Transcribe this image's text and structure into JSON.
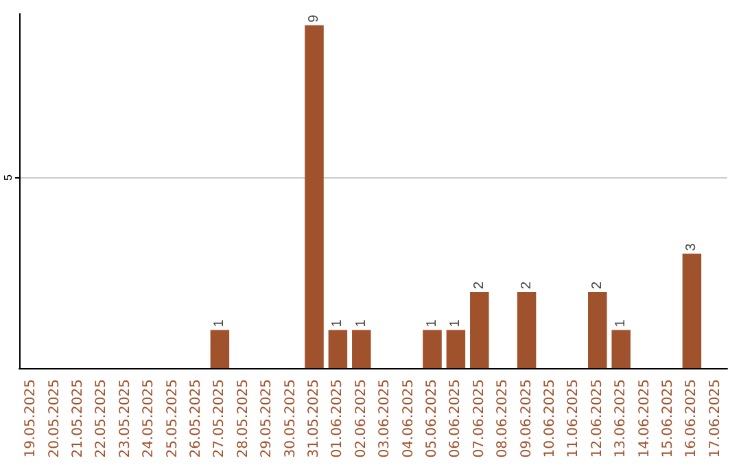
{
  "chart_data": {
    "type": "bar",
    "categories": [
      "19.05.2025",
      "20.05.2025",
      "21.05.2025",
      "22.05.2025",
      "23.05.2025",
      "24.05.2025",
      "25.05.2025",
      "26.05.2025",
      "27.05.2025",
      "28.05.2025",
      "29.05.2025",
      "30.05.2025",
      "31.05.2025",
      "01.06.2025",
      "02.06.2025",
      "03.06.2025",
      "04.06.2025",
      "05.06.2025",
      "06.06.2025",
      "07.06.2025",
      "08.06.2025",
      "09.06.2025",
      "10.06.2025",
      "11.06.2025",
      "12.06.2025",
      "13.06.2025",
      "14.06.2025",
      "15.06.2025",
      "16.06.2025",
      "17.06.2025"
    ],
    "values": [
      0,
      0,
      0,
      0,
      0,
      0,
      0,
      0,
      1,
      0,
      0,
      0,
      9,
      1,
      1,
      0,
      0,
      1,
      1,
      2,
      0,
      2,
      0,
      0,
      2,
      1,
      0,
      0,
      3,
      0
    ],
    "value_labels": [
      null,
      null,
      null,
      null,
      null,
      null,
      null,
      null,
      "1",
      null,
      null,
      null,
      "9",
      "1",
      "1",
      null,
      null,
      "1",
      "1",
      "2",
      null,
      "2",
      null,
      null,
      "2",
      "1",
      null,
      null,
      "3",
      null
    ],
    "color": "#a0522d",
    "ylim": [
      0,
      9.3
    ],
    "yticks": [
      5
    ],
    "grid": "y"
  }
}
